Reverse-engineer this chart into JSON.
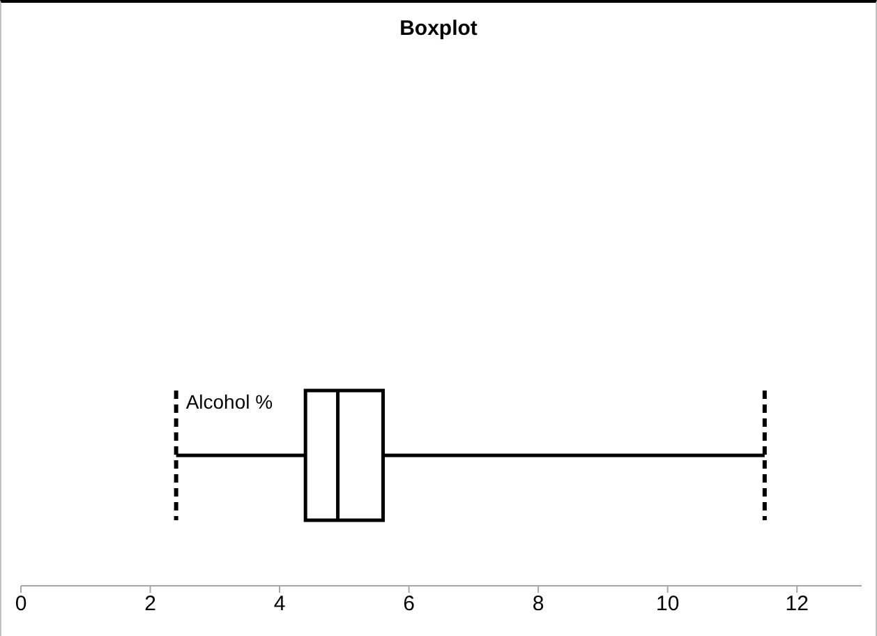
{
  "chart_data": {
    "type": "box",
    "title": "Boxplot",
    "orientation": "horizontal",
    "categories": [
      null
    ],
    "boxes": [
      {
        "low": 2.4,
        "q1": 4.4,
        "median": 4.9,
        "q3": 5.6,
        "high": 11.5
      }
    ],
    "annotations": [
      {
        "text": "Alcohol %",
        "x": 2.4
      }
    ],
    "xlim": [
      0,
      13
    ],
    "xticks": [
      0,
      2,
      4,
      6,
      8,
      10,
      12
    ]
  }
}
